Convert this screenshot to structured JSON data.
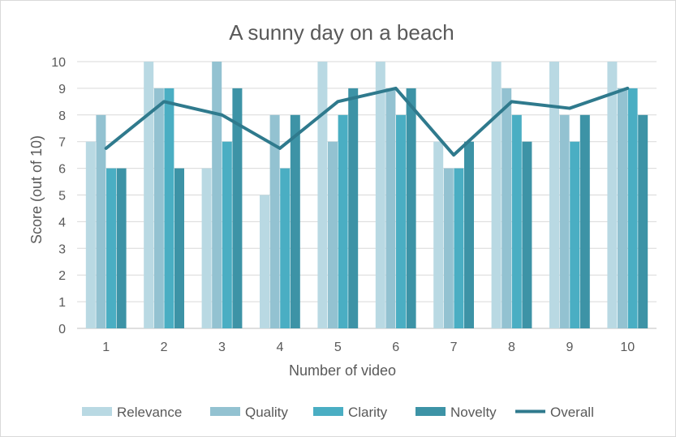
{
  "chart_data": {
    "type": "bar",
    "title": "A sunny day on a beach",
    "xlabel": "Number of video",
    "ylabel": "Score (out of 10)",
    "ylim": [
      0,
      10
    ],
    "yticks": [
      "0",
      "1",
      "2",
      "3",
      "4",
      "5",
      "6",
      "7",
      "8",
      "9",
      "10"
    ],
    "categories": [
      "1",
      "2",
      "3",
      "4",
      "5",
      "6",
      "7",
      "8",
      "9",
      "10"
    ],
    "grid": true,
    "legend_position": "bottom",
    "series": [
      {
        "name": "Relevance",
        "kind": "bar",
        "color": "#b9d9e3",
        "values": [
          7,
          10,
          6,
          5,
          10,
          10,
          7,
          10,
          10,
          10
        ]
      },
      {
        "name": "Quality",
        "kind": "bar",
        "color": "#93c2d1",
        "values": [
          8,
          9,
          10,
          8,
          7,
          9,
          6,
          9,
          8,
          9
        ]
      },
      {
        "name": "Clarity",
        "kind": "bar",
        "color": "#4aaec3",
        "values": [
          6,
          9,
          7,
          6,
          8,
          8,
          6,
          8,
          7,
          9
        ]
      },
      {
        "name": "Novelty",
        "kind": "bar",
        "color": "#3d93a6",
        "values": [
          6,
          6,
          9,
          8,
          9,
          9,
          7,
          7,
          8,
          8
        ]
      },
      {
        "name": "Overall",
        "kind": "line",
        "color": "#2f7a8d",
        "values": [
          6.75,
          8.5,
          8,
          6.75,
          8.5,
          9,
          6.5,
          8.5,
          8.25,
          9
        ]
      }
    ]
  }
}
